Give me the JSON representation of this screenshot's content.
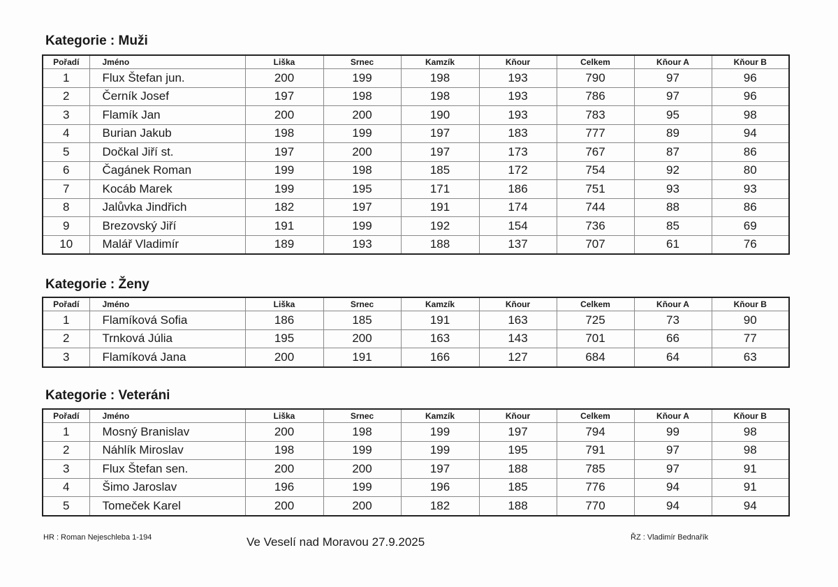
{
  "columns": [
    "Pořadí",
    "Jméno",
    "Liška",
    "Srnec",
    "Kamzík",
    "Kňour",
    "Celkem",
    "Kňour A",
    "Kňour B"
  ],
  "categories": [
    {
      "title": "Kategorie : Muži",
      "rows": [
        [
          "1",
          "Flux Štefan jun.",
          "200",
          "199",
          "198",
          "193",
          "790",
          "97",
          "96"
        ],
        [
          "2",
          "Černík Josef",
          "197",
          "198",
          "198",
          "193",
          "786",
          "97",
          "96"
        ],
        [
          "3",
          "Flamík Jan",
          "200",
          "200",
          "190",
          "193",
          "783",
          "95",
          "98"
        ],
        [
          "4",
          "Burian Jakub",
          "198",
          "199",
          "197",
          "183",
          "777",
          "89",
          "94"
        ],
        [
          "5",
          "Dočkal Jiří st.",
          "197",
          "200",
          "197",
          "173",
          "767",
          "87",
          "86"
        ],
        [
          "6",
          "Čagánek Roman",
          "199",
          "198",
          "185",
          "172",
          "754",
          "92",
          "80"
        ],
        [
          "7",
          "Kocáb Marek",
          "199",
          "195",
          "171",
          "186",
          "751",
          "93",
          "93"
        ],
        [
          "8",
          "Jalůvka Jindřich",
          "182",
          "197",
          "191",
          "174",
          "744",
          "88",
          "86"
        ],
        [
          "9",
          "Brezovský Jiří",
          "191",
          "199",
          "192",
          "154",
          "736",
          "85",
          "69"
        ],
        [
          "10",
          "Malář Vladimír",
          "189",
          "193",
          "188",
          "137",
          "707",
          "61",
          "76"
        ]
      ]
    },
    {
      "title": "Kategorie : Ženy",
      "rows": [
        [
          "1",
          "Flamíková Sofia",
          "186",
          "185",
          "191",
          "163",
          "725",
          "73",
          "90"
        ],
        [
          "2",
          "Trnková Júlia",
          "195",
          "200",
          "163",
          "143",
          "701",
          "66",
          "77"
        ],
        [
          "3",
          "Flamíková Jana",
          "200",
          "191",
          "166",
          "127",
          "684",
          "64",
          "63"
        ]
      ]
    },
    {
      "title": "Kategorie : Veteráni",
      "rows": [
        [
          "1",
          "Mosný Branislav",
          "200",
          "198",
          "199",
          "197",
          "794",
          "99",
          "98"
        ],
        [
          "2",
          "Náhlík Miroslav",
          "198",
          "199",
          "199",
          "195",
          "791",
          "97",
          "98"
        ],
        [
          "3",
          "Flux Štefan sen.",
          "200",
          "200",
          "197",
          "188",
          "785",
          "97",
          "91"
        ],
        [
          "4",
          "Šimo Jaroslav",
          "196",
          "199",
          "196",
          "185",
          "776",
          "94",
          "91"
        ],
        [
          "5",
          "Tomeček Karel",
          "200",
          "200",
          "182",
          "188",
          "770",
          "94",
          "94"
        ]
      ]
    }
  ],
  "footer": {
    "left": "HR : Roman Nejeschleba  1-194",
    "center": "Ve Veselí nad Moravou 27.9.2025",
    "right": "ŘZ : Vladimír Bednařík"
  }
}
